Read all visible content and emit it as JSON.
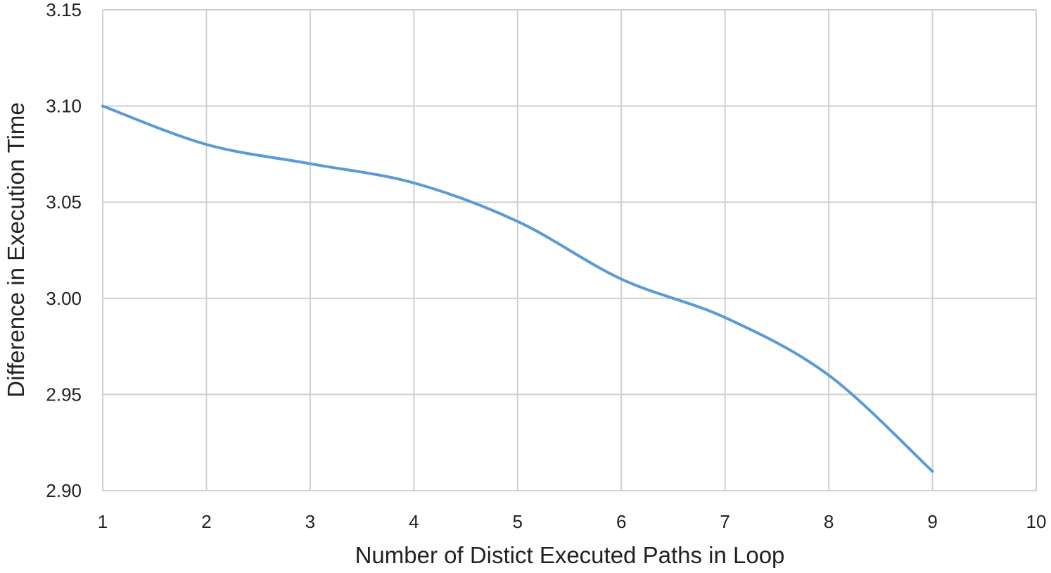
{
  "chart_data": {
    "type": "line",
    "title": "",
    "xlabel": "Number of Distict Executed Paths in Loop",
    "ylabel": "Difference in Execution Time",
    "xlim": [
      1,
      10
    ],
    "ylim": [
      2.9,
      3.15
    ],
    "x_ticks": [
      "1",
      "2",
      "3",
      "4",
      "5",
      "6",
      "7",
      "8",
      "9",
      "10"
    ],
    "y_ticks": [
      "2.90",
      "2.95",
      "3.00",
      "3.05",
      "3.10",
      "3.15"
    ],
    "grid": true,
    "legend": "none",
    "line_color": "#5b9bd5",
    "grid_color": "#d0d0d0",
    "series": [
      {
        "x": [
          1,
          2,
          3,
          4,
          5,
          6,
          7,
          8,
          9
        ],
        "values": [
          3.1,
          3.08,
          3.07,
          3.06,
          3.04,
          3.01,
          2.99,
          2.96,
          2.91
        ]
      }
    ]
  }
}
